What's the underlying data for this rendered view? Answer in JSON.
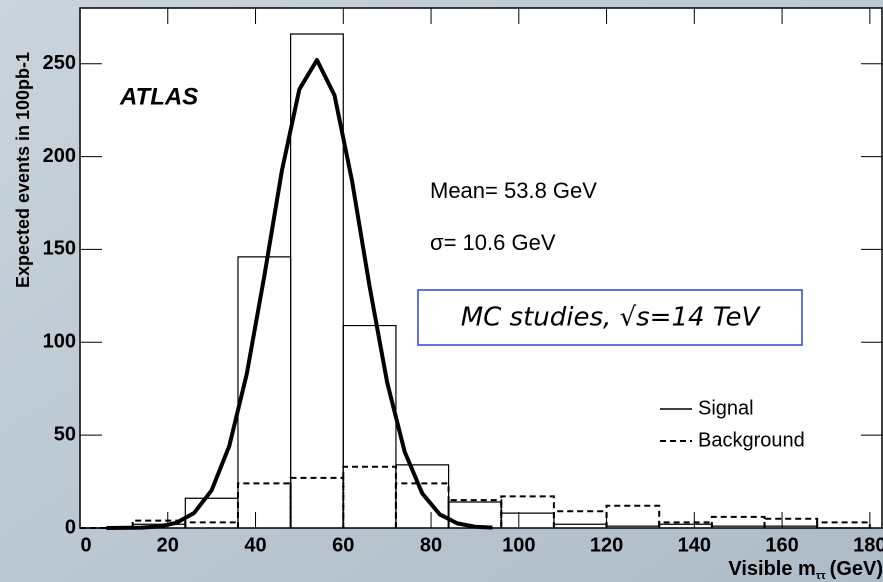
{
  "chart_data": {
    "type": "histogram",
    "y_label": "Expected events in 100pb-1",
    "x_label": "Visible m",
    "x_label_subscript": "ττ",
    "x_label_unit": "(GeV)",
    "annotations": [
      "ATLAS",
      "Mean= 53.8 GeV",
      "σ= 10.6 GeV"
    ],
    "boxed_note": "MC studies, √s=14 TeV",
    "bins": [
      0,
      12,
      24,
      36,
      48,
      60,
      72,
      84,
      96,
      108,
      120,
      132,
      144,
      156,
      168,
      180
    ],
    "series": [
      {
        "name": "Signal",
        "color": "#000000",
        "dash": false,
        "values": [
          0,
          2,
          16,
          146,
          266,
          109,
          34,
          14,
          8,
          2,
          1,
          2,
          1,
          1,
          0
        ]
      },
      {
        "name": "Background",
        "color": "#000000",
        "dash": true,
        "values": [
          0,
          4,
          3,
          24,
          27,
          33,
          24,
          15,
          17,
          9,
          12,
          3,
          6,
          5,
          3
        ]
      }
    ],
    "curve": {
      "color": "#000000",
      "x": [
        6,
        14,
        18,
        22,
        26,
        30,
        34,
        38,
        42,
        46,
        50,
        54,
        58,
        62,
        66,
        70,
        74,
        78,
        82,
        86,
        90,
        94
      ],
      "values": [
        0,
        0.2,
        0.8,
        2.8,
        8.1,
        20.3,
        44,
        82.9,
        135.6,
        192.3,
        236.3,
        252,
        233,
        186.9,
        130,
        78.4,
        41,
        18.6,
        7.3,
        2.5,
        0.7,
        0.2
      ]
    },
    "xlim": [
      0,
      183
    ],
    "ylim": [
      0,
      280
    ],
    "xticks": [
      0,
      20,
      40,
      60,
      80,
      100,
      120,
      140,
      160,
      180
    ],
    "yticks": [
      0,
      50,
      100,
      150,
      200,
      250
    ],
    "legend": "right"
  }
}
